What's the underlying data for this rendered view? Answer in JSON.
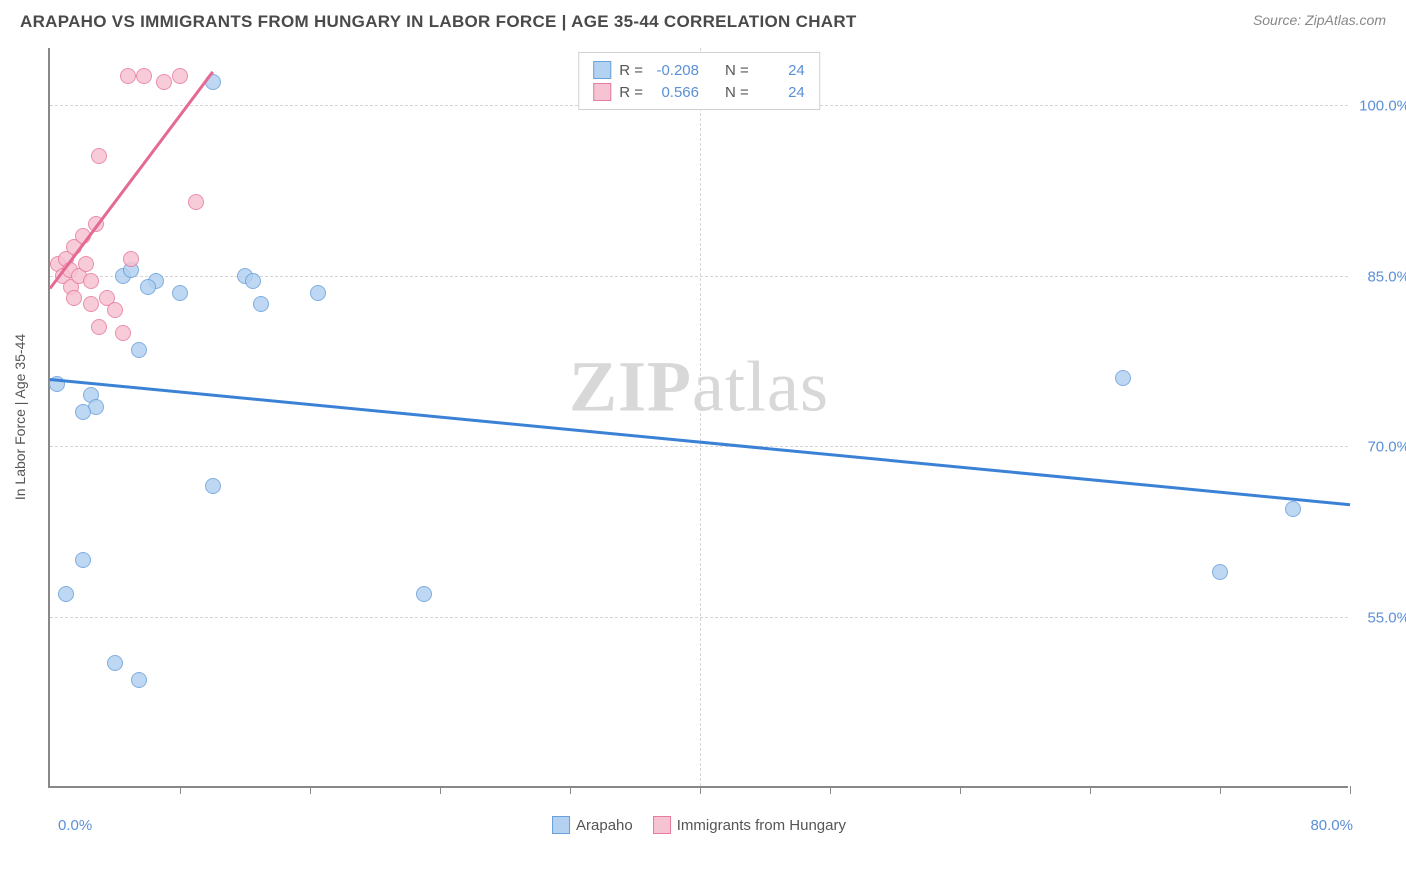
{
  "header": {
    "title": "ARAPAHO VS IMMIGRANTS FROM HUNGARY IN LABOR FORCE | AGE 35-44 CORRELATION CHART",
    "source": "Source: ZipAtlas.com"
  },
  "watermark": {
    "left": "ZIP",
    "right": "atlas"
  },
  "chart": {
    "type": "scatter",
    "background_color": "#ffffff",
    "grid_color": "#d5d5d5",
    "axis_color": "#888888",
    "y_axis_title": "In Labor Force | Age 35-44",
    "y_axis_title_fontsize": 14,
    "xlim": [
      0,
      80
    ],
    "ylim": [
      40,
      105
    ],
    "yticks": [
      {
        "value": 100,
        "label": "100.0%"
      },
      {
        "value": 85,
        "label": "85.0%"
      },
      {
        "value": 70,
        "label": "70.0%"
      },
      {
        "value": 55,
        "label": "55.0%"
      }
    ],
    "xticks_minor": [
      8,
      16,
      24,
      32,
      40,
      48,
      56,
      64,
      72,
      80
    ],
    "x_axis_labels": {
      "left": "0.0%",
      "right": "80.0%"
    },
    "y_tick_label_color": "#5b8fd6",
    "x_tick_label_color": "#5b8fd6",
    "label_fontsize": 15,
    "series": [
      {
        "name": "Arapaho",
        "marker_fill": "#b3d1f0",
        "marker_stroke": "#6aa0db",
        "marker_size": 16,
        "marker_shape": "circle",
        "trend_color": "#3b82d6",
        "trend_width": 3,
        "R": "-0.208",
        "N": "24",
        "trendline": {
          "x1": 0,
          "y1": 76,
          "x2": 80,
          "y2": 65
        },
        "points": [
          {
            "x": 0.4,
            "y": 75.5
          },
          {
            "x": 2.0,
            "y": 60.0
          },
          {
            "x": 4.5,
            "y": 85.0
          },
          {
            "x": 5.0,
            "y": 85.5
          },
          {
            "x": 6.5,
            "y": 84.5
          },
          {
            "x": 5.5,
            "y": 78.5
          },
          {
            "x": 10.0,
            "y": 102.0
          },
          {
            "x": 8.0,
            "y": 83.5
          },
          {
            "x": 12.0,
            "y": 85.0
          },
          {
            "x": 12.5,
            "y": 84.5
          },
          {
            "x": 13.0,
            "y": 82.5
          },
          {
            "x": 16.5,
            "y": 83.5
          },
          {
            "x": 2.5,
            "y": 74.5
          },
          {
            "x": 2.8,
            "y": 73.5
          },
          {
            "x": 10.0,
            "y": 66.5
          },
          {
            "x": 1.0,
            "y": 57.0
          },
          {
            "x": 4.0,
            "y": 51.0
          },
          {
            "x": 5.5,
            "y": 49.5
          },
          {
            "x": 23.0,
            "y": 57.0
          },
          {
            "x": 66.0,
            "y": 76.0
          },
          {
            "x": 72.0,
            "y": 59.0
          },
          {
            "x": 76.5,
            "y": 64.5
          },
          {
            "x": 2.0,
            "y": 73.0
          },
          {
            "x": 6.0,
            "y": 84.0
          }
        ]
      },
      {
        "name": "Immigrants from Hungary",
        "marker_fill": "#f6c3d2",
        "marker_stroke": "#e87ba0",
        "marker_size": 16,
        "marker_shape": "circle",
        "trend_color": "#e46a93",
        "trend_width": 3,
        "R": "0.566",
        "N": "24",
        "trendline": {
          "x1": 0,
          "y1": 84,
          "x2": 10,
          "y2": 103
        },
        "points": [
          {
            "x": 0.5,
            "y": 86.0
          },
          {
            "x": 0.8,
            "y": 85.0
          },
          {
            "x": 1.0,
            "y": 86.5
          },
          {
            "x": 1.2,
            "y": 85.5
          },
          {
            "x": 1.3,
            "y": 84.0
          },
          {
            "x": 1.5,
            "y": 87.5
          },
          {
            "x": 1.8,
            "y": 85.0
          },
          {
            "x": 1.5,
            "y": 83.0
          },
          {
            "x": 2.0,
            "y": 88.5
          },
          {
            "x": 2.5,
            "y": 84.5
          },
          {
            "x": 2.8,
            "y": 89.5
          },
          {
            "x": 2.5,
            "y": 82.5
          },
          {
            "x": 3.0,
            "y": 80.5
          },
          {
            "x": 3.5,
            "y": 83.0
          },
          {
            "x": 3.0,
            "y": 95.5
          },
          {
            "x": 4.0,
            "y": 82.0
          },
          {
            "x": 5.0,
            "y": 86.5
          },
          {
            "x": 4.5,
            "y": 80.0
          },
          {
            "x": 4.8,
            "y": 102.5
          },
          {
            "x": 5.8,
            "y": 102.5
          },
          {
            "x": 7.0,
            "y": 102.0
          },
          {
            "x": 8.0,
            "y": 102.5
          },
          {
            "x": 9.0,
            "y": 91.5
          },
          {
            "x": 2.2,
            "y": 86.0
          }
        ]
      }
    ],
    "legend_top": {
      "border_color": "#d0d0d0",
      "background_color": "#ffffff",
      "R_label": "R =",
      "N_label": "N ="
    },
    "legend_bottom": {
      "items": [
        {
          "label": "Arapaho",
          "fill": "#b3d1f0",
          "stroke": "#6aa0db"
        },
        {
          "label": "Immigrants from Hungary",
          "fill": "#f6c3d2",
          "stroke": "#e87ba0"
        }
      ]
    }
  }
}
